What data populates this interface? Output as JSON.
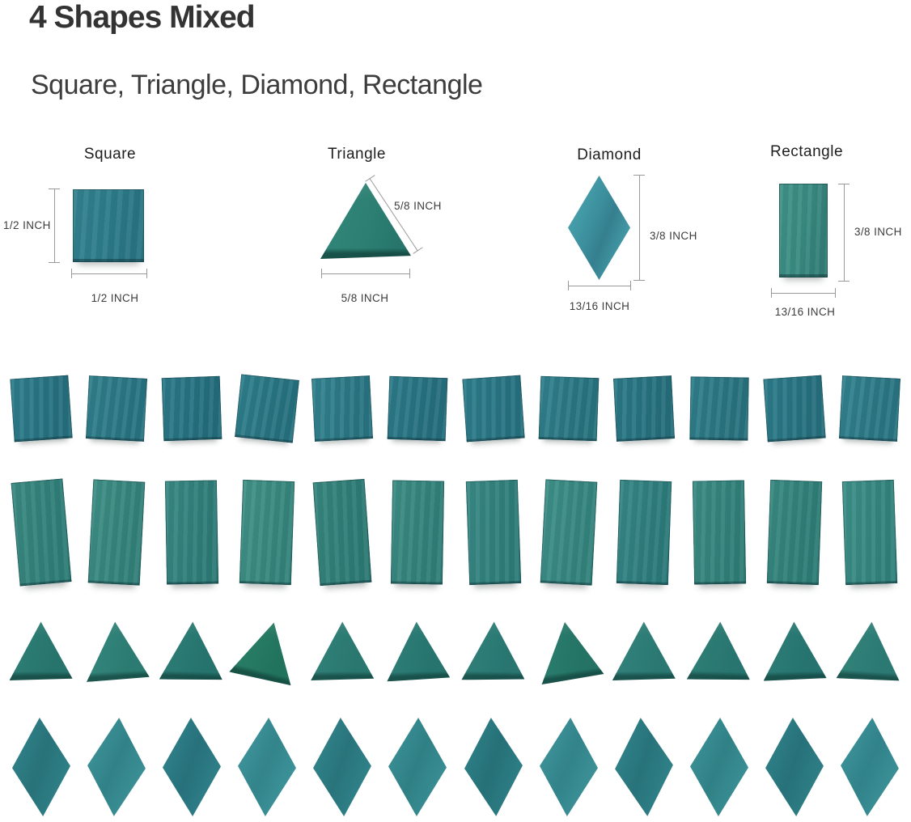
{
  "header": {
    "title": "4 Shapes Mixed",
    "subtitle": "Square, Triangle, Diamond, Rectangle"
  },
  "palette": {
    "background": "#ffffff",
    "title_text": "#333333",
    "dimension_line": "#999999",
    "tile_teal": "#2f7e8e",
    "tile_green_teal": "#2e8076"
  },
  "figures": [
    {
      "label": "Square",
      "side_dim": "1/2 INCH",
      "bottom_dim": "1/2 INCH",
      "color": "#2e7d8c"
    },
    {
      "label": "Triangle",
      "side_dim": "5/8 INCH",
      "bottom_dim": "5/8 INCH",
      "color": "#2c7f72"
    },
    {
      "label": "Diamond",
      "side_dim": "3/8 INCH",
      "bottom_dim": "13/16 INCH",
      "color": "#3c8f9d"
    },
    {
      "label": "Rectangle",
      "side_dim": "3/8 INCH",
      "bottom_dim": "13/16 INCH",
      "color": "#3a8c82"
    }
  ],
  "rows": [
    {
      "shape": "square",
      "tiles": [
        {
          "rot": -4,
          "c1": "#2f7e8e",
          "c2": "#27707f"
        },
        {
          "rot": 3,
          "c1": "#31818c",
          "c2": "#2a7483"
        },
        {
          "rot": -2,
          "c1": "#2d7a8a",
          "c2": "#256e7d"
        },
        {
          "rot": 6,
          "c1": "#30808d",
          "c2": "#27727f"
        },
        {
          "rot": -3,
          "c1": "#338490",
          "c2": "#2a7582"
        },
        {
          "rot": 2,
          "c1": "#2e7c8b",
          "c2": "#266f7e"
        },
        {
          "rot": -4,
          "c1": "#2f7f8d",
          "c2": "#287281"
        },
        {
          "rot": 2,
          "c1": "#32828e",
          "c2": "#297480"
        },
        {
          "rot": -3,
          "c1": "#2d7b89",
          "c2": "#266f7c"
        },
        {
          "rot": 1,
          "c1": "#31808c",
          "c2": "#29737f"
        },
        {
          "rot": -4,
          "c1": "#2e7d8c",
          "c2": "#27707e"
        },
        {
          "rot": 3,
          "c1": "#338390",
          "c2": "#2b7683"
        }
      ]
    },
    {
      "shape": "rectangle",
      "tiles": [
        {
          "rot": -5,
          "c1": "#3b8b82",
          "c2": "#2f7d77"
        },
        {
          "rot": 3,
          "c1": "#3f9087",
          "c2": "#338179"
        },
        {
          "rot": -1,
          "c1": "#3a8a84",
          "c2": "#2e7b76"
        },
        {
          "rot": 2,
          "c1": "#429388",
          "c2": "#35847b"
        },
        {
          "rot": -4,
          "c1": "#38887f",
          "c2": "#2d7a74"
        },
        {
          "rot": 1,
          "c1": "#3d8e85",
          "c2": "#317f78"
        },
        {
          "rot": -2,
          "c1": "#3a8a86",
          "c2": "#2e7c79"
        },
        {
          "rot": 3,
          "c1": "#40918a",
          "c2": "#34837c"
        },
        {
          "rot": 2,
          "c1": "#388887",
          "c2": "#2c7a7a"
        },
        {
          "rot": -1,
          "c1": "#3c8d85",
          "c2": "#307e77"
        },
        {
          "rot": 2,
          "c1": "#3a8b82",
          "c2": "#2e7d76"
        },
        {
          "rot": -2,
          "c1": "#3e9089",
          "c2": "#32827b"
        }
      ]
    },
    {
      "shape": "triangle",
      "tiles": [
        {
          "rot": 0,
          "c1": "#2f8177",
          "c2": "#27746c"
        },
        {
          "rot": -3,
          "c1": "#35897e",
          "c2": "#2c7b72"
        },
        {
          "rot": 2,
          "c1": "#2e8078",
          "c2": "#26736d"
        },
        {
          "rot": 14,
          "c1": "#2b8068",
          "c2": "#22735e"
        },
        {
          "rot": 0,
          "c1": "#32847a",
          "c2": "#2a7770"
        },
        {
          "rot": -2,
          "c1": "#2f8179",
          "c2": "#27746e"
        },
        {
          "rot": 1,
          "c1": "#31837a",
          "c2": "#297671"
        },
        {
          "rot": -8,
          "c1": "#2d8070",
          "c2": "#247365"
        },
        {
          "rot": 0,
          "c1": "#33857c",
          "c2": "#2b7873"
        },
        {
          "rot": 2,
          "c1": "#308278",
          "c2": "#28756f"
        },
        {
          "rot": -1,
          "c1": "#2e8077",
          "c2": "#267370"
        },
        {
          "rot": 4,
          "c1": "#34867b",
          "c2": "#2c7974"
        }
      ]
    },
    {
      "shape": "diamond",
      "tiles": [
        {
          "rot": -2,
          "c1": "#2f7f86",
          "c2": "#287279"
        },
        {
          "rot": 3,
          "c1": "#3a8f94",
          "c2": "#318288"
        },
        {
          "rot": -1,
          "c1": "#2e7e88",
          "c2": "#27717b"
        },
        {
          "rot": 2,
          "c1": "#3c9198",
          "c2": "#33848b"
        },
        {
          "rot": -2,
          "c1": "#308188",
          "c2": "#29747b"
        },
        {
          "rot": 1,
          "c1": "#388d92",
          "c2": "#2f8085"
        },
        {
          "rot": -3,
          "c1": "#2d7d84",
          "c2": "#267077"
        },
        {
          "rot": 2,
          "c1": "#3b9096",
          "c2": "#32838a"
        },
        {
          "rot": -4,
          "c1": "#2f8087",
          "c2": "#28737a"
        },
        {
          "rot": 1,
          "c1": "#398e93",
          "c2": "#308186"
        },
        {
          "rot": -2,
          "c1": "#2e7e85",
          "c2": "#27717a"
        },
        {
          "rot": 3,
          "c1": "#3a8f95",
          "c2": "#31828a"
        }
      ]
    }
  ]
}
